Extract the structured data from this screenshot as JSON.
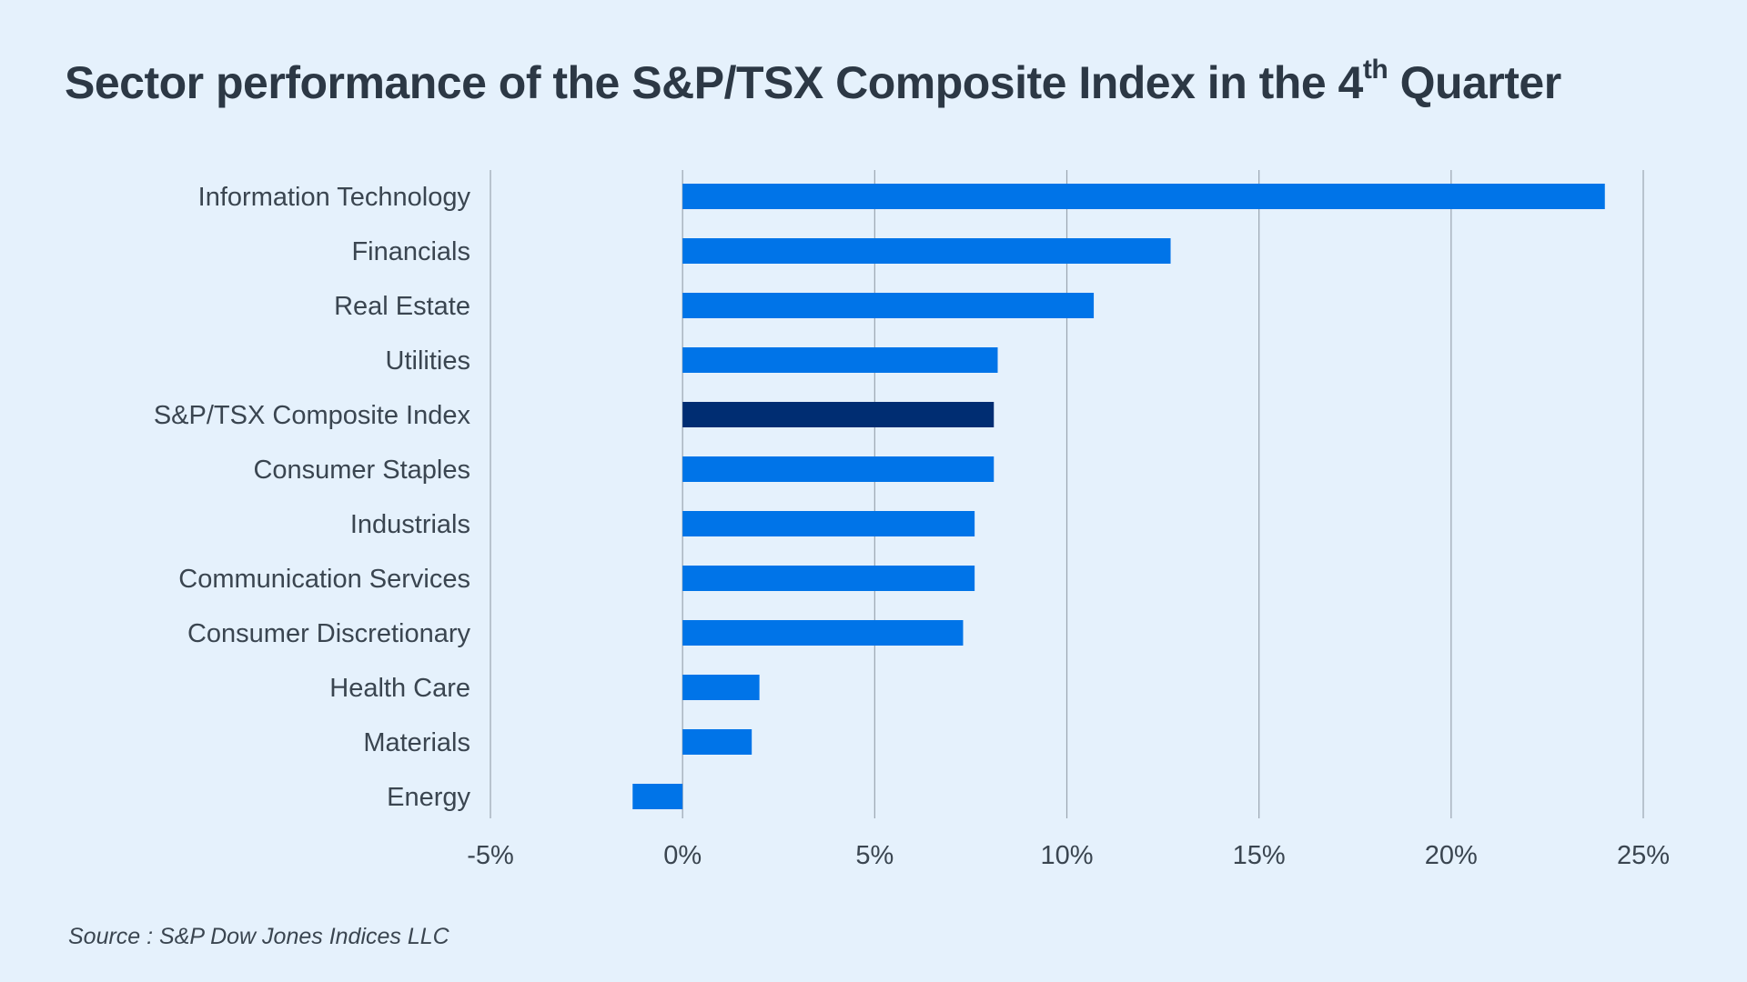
{
  "title": {
    "main": "Sector performance of the S&P/TSX Composite Index in the 4",
    "sup": "th",
    "end": " Quarter"
  },
  "source": "Source : S&P Dow Jones Indices LLC",
  "colors": {
    "bar": "#0074e8",
    "highlight": "#002d72"
  },
  "chart_data": {
    "type": "bar",
    "orientation": "horizontal",
    "title": "Sector performance of the S&P/TSX Composite Index in the 4th Quarter",
    "xlabel": "",
    "ylabel": "",
    "xlim": [
      -5,
      25
    ],
    "xticks": [
      -5,
      0,
      5,
      10,
      15,
      20,
      25
    ],
    "tick_labels": [
      "-5%",
      "0%",
      "5%",
      "10%",
      "15%",
      "20%",
      "25%"
    ],
    "grid": true,
    "categories": [
      "Information Technology",
      "Financials",
      "Real Estate",
      "Utilities",
      "S&P/TSX Composite Index",
      "Consumer Staples",
      "Industrials",
      "Communication Services",
      "Consumer Discretionary",
      "Health Care",
      "Materials",
      "Energy"
    ],
    "values": [
      24.0,
      12.7,
      10.7,
      8.2,
      8.1,
      8.1,
      7.6,
      7.6,
      7.3,
      2.0,
      1.8,
      -1.3
    ],
    "highlight": "S&P/TSX Composite Index"
  }
}
